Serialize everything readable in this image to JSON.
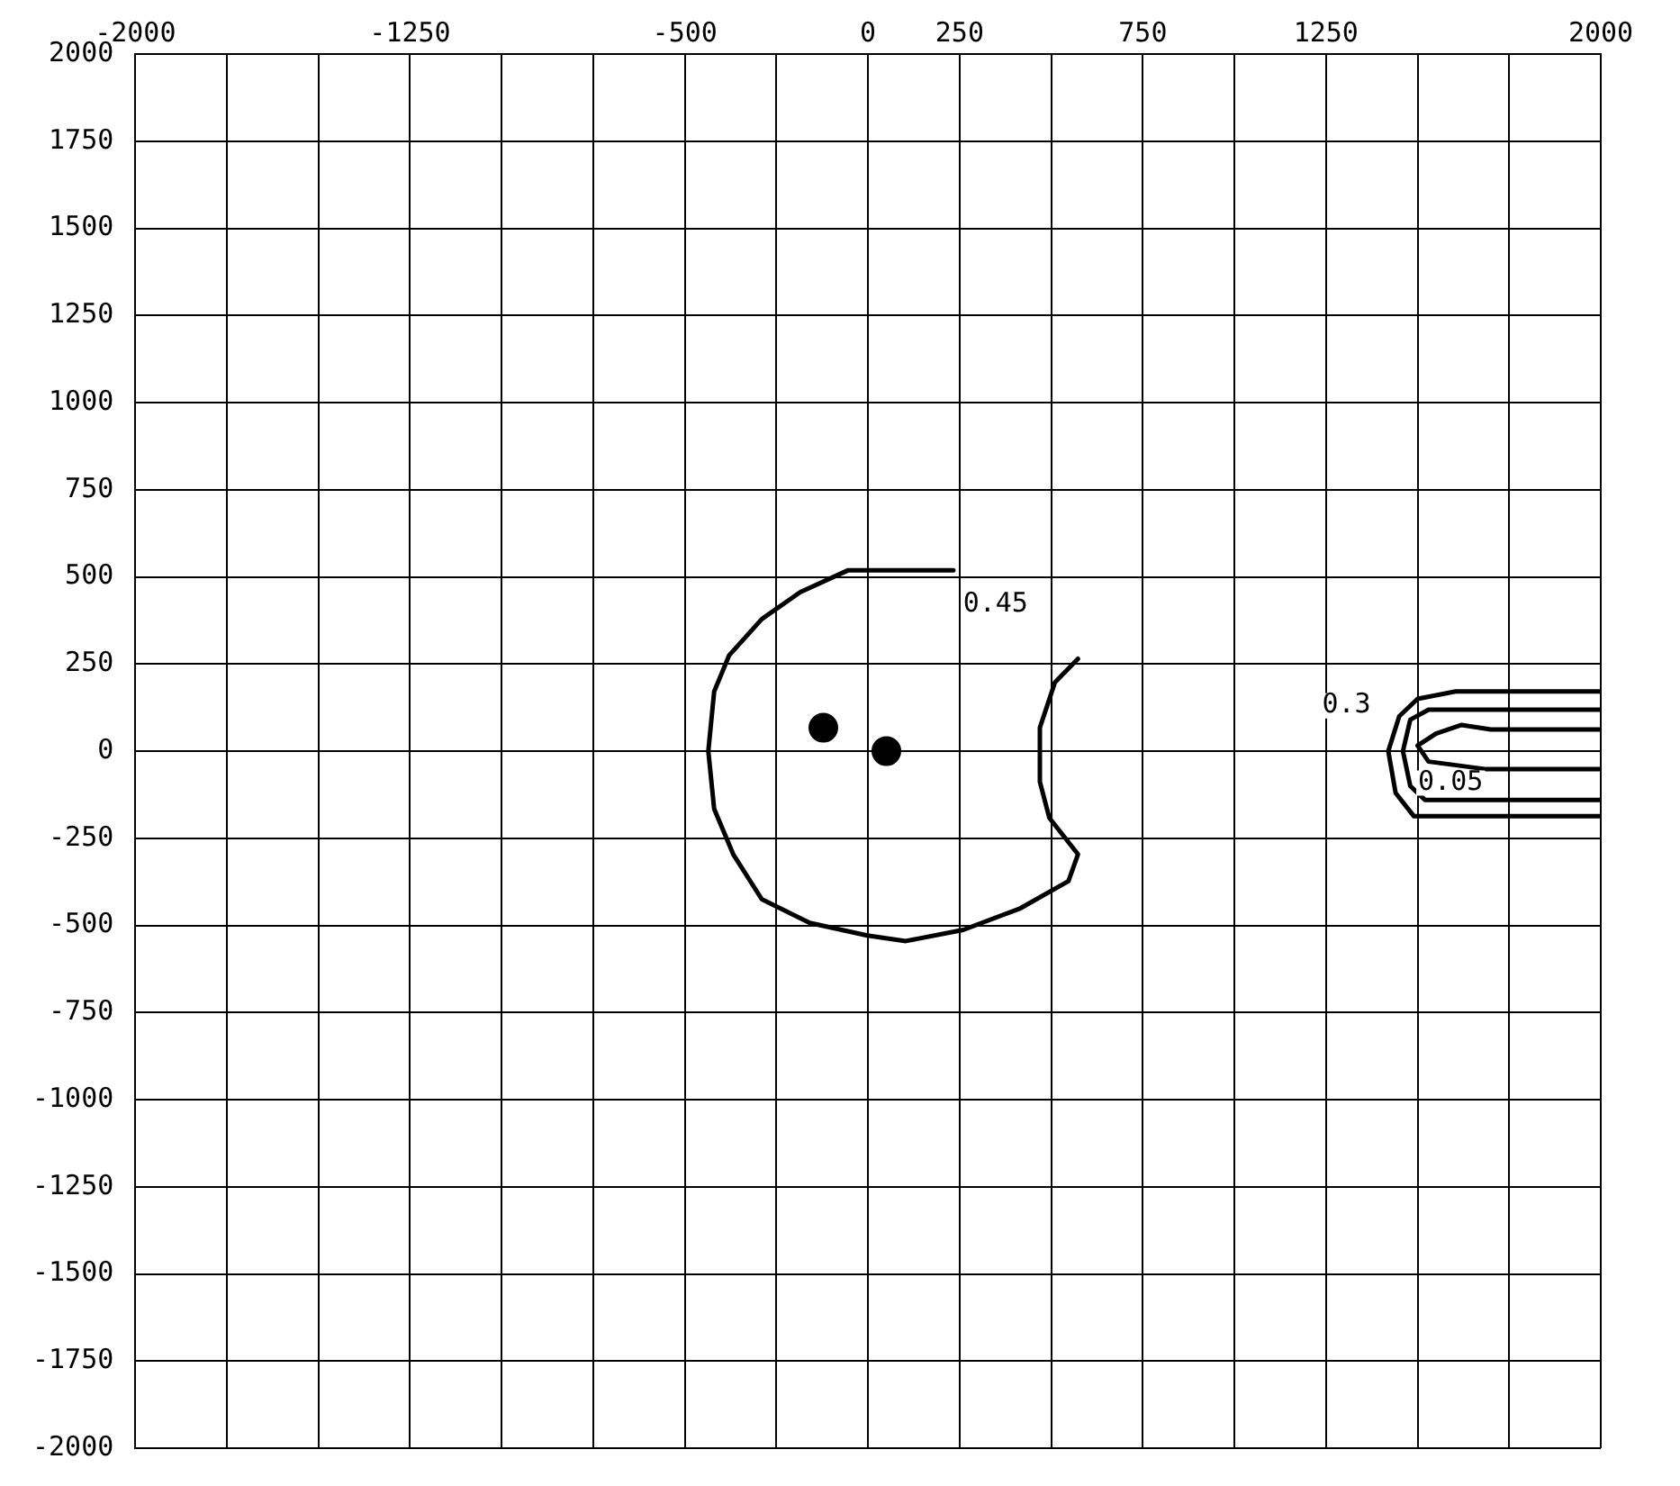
{
  "chart_data": {
    "type": "line",
    "xlim": [
      -2000,
      2000
    ],
    "ylim": [
      -2000,
      2000
    ],
    "xticks": [
      -2000,
      {
        "value": -1750,
        "label": null
      },
      {
        "value": -1500,
        "label": null
      },
      -1250,
      {
        "value": -1000,
        "label": null
      },
      {
        "value": -750,
        "label": null
      },
      -500,
      {
        "value": -250,
        "label": null
      },
      0,
      250,
      {
        "value": 500,
        "label": null
      },
      750,
      {
        "value": 1000,
        "label": null
      },
      1250,
      {
        "value": 1500,
        "label": null
      },
      {
        "value": 1750,
        "label": null
      },
      2000
    ],
    "yticks": [
      -2000,
      -1750,
      -1500,
      -1250,
      -1000,
      -750,
      -500,
      -250,
      0,
      250,
      500,
      750,
      1000,
      1250,
      1500,
      1750,
      2000
    ],
    "grid": true,
    "legend": false,
    "marker": "none",
    "line_style": "solid",
    "series": [
      {
        "color": "#000000",
        "x": [
          573,
          510,
          469,
          469,
          495,
          573,
          547,
          416,
          260,
          103,
          -2,
          -159,
          -290,
          -368,
          -420,
          -436,
          -420,
          -379,
          -290,
          -185,
          -54,
          233
        ],
        "values": [
          265,
          197,
          67,
          -88,
          -192,
          -296,
          -373,
          -451,
          -513,
          -545,
          -529,
          -493,
          -425,
          -296,
          -166,
          0,
          171,
          275,
          379,
          456,
          519,
          519
        ]
      },
      {
        "type": "scatter",
        "marker": "circle",
        "color": "#000000",
        "x": [
          50,
          -122
        ],
        "values": [
          0,
          67
        ]
      },
      {
        "color": "#000000",
        "x": [
          2000,
          1604,
          1500,
          1450,
          1420,
          1440,
          1490,
          2000
        ],
        "values": [
          171,
          171,
          150,
          100,
          0,
          -120,
          -187,
          -187
        ]
      },
      {
        "color": "#000000",
        "x": [
          2000,
          1530,
          1480,
          1460,
          1480,
          1520,
          2000
        ],
        "values": [
          119,
          119,
          90,
          0,
          -100,
          -140,
          -140
        ]
      },
      {
        "color": "#000000",
        "x": [
          2000,
          1700,
          1620,
          1550,
          1500,
          1530,
          1688,
          2000
        ],
        "values": [
          62,
          62,
          75,
          50,
          16,
          -30,
          -52,
          -52
        ]
      }
    ],
    "annotations": [
      {
        "text": "0.45",
        "x": 348,
        "y": 420
      },
      {
        "text": "0.3",
        "x": 1306,
        "y": 130
      },
      {
        "text": "0.05",
        "x": 1590,
        "y": -92
      }
    ]
  }
}
